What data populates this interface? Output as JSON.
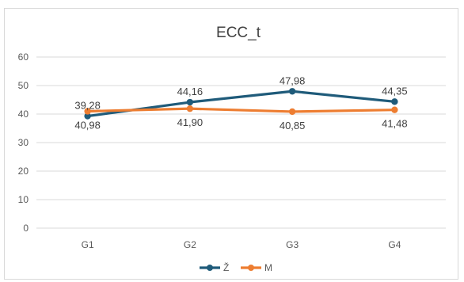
{
  "chart_data": {
    "type": "line",
    "title": "ECC_t",
    "xlabel": "",
    "ylabel": "",
    "categories": [
      "G1",
      "G2",
      "G3",
      "G4"
    ],
    "ylim": [
      0,
      60
    ],
    "yticks": [
      0,
      10,
      20,
      30,
      40,
      50,
      60
    ],
    "grid": true,
    "legend_position": "bottom",
    "series": [
      {
        "name": "Ž",
        "color": "#1f5b7a",
        "values": [
          39.28,
          44.16,
          47.98,
          44.35
        ],
        "labels": [
          "39,28",
          "44,16",
          "47,98",
          "44,35"
        ],
        "label_position": [
          "above",
          "above",
          "above",
          "above"
        ]
      },
      {
        "name": "M",
        "color": "#ed7d31",
        "values": [
          40.98,
          41.9,
          40.85,
          41.48
        ],
        "labels": [
          "40,98",
          "41,90",
          "40,85",
          "41,48"
        ],
        "label_position": [
          "below",
          "below",
          "below",
          "below"
        ]
      }
    ]
  }
}
